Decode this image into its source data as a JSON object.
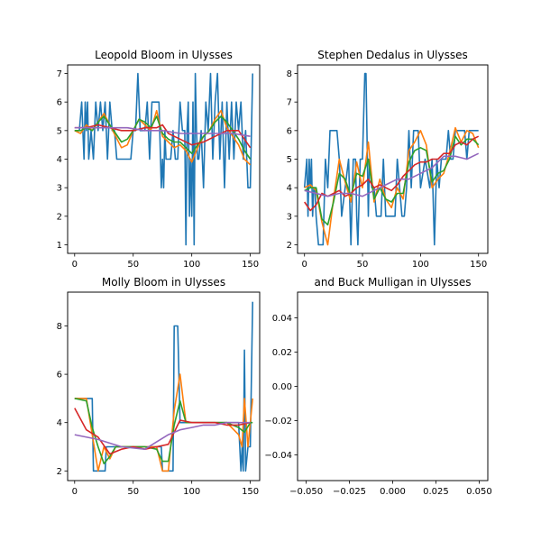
{
  "colors": [
    "#1f77b4",
    "#ff7f0e",
    "#2ca02c",
    "#d62728",
    "#9467bd"
  ],
  "chart_data": [
    {
      "type": "line",
      "title": "Leopold Bloom in Ulysses",
      "xlim": [
        -6,
        158
      ],
      "ylim": [
        0.7,
        7.3
      ],
      "xticks": [
        0,
        50,
        100,
        150
      ],
      "yticks": [
        1,
        2,
        3,
        4,
        5,
        6,
        7
      ],
      "series": [
        {
          "x": [
            0,
            2,
            4,
            6,
            8,
            9,
            10,
            11,
            12,
            14,
            16,
            18,
            20,
            22,
            24,
            26,
            28,
            30,
            32,
            34,
            36,
            38,
            40,
            42,
            44,
            46,
            48,
            50,
            52,
            54,
            56,
            58,
            60,
            62,
            64,
            66,
            68,
            70,
            72,
            74,
            75,
            76,
            77,
            78,
            80,
            82,
            84,
            86,
            88,
            90,
            92,
            94,
            95,
            96,
            97,
            98,
            99,
            100,
            101,
            102,
            103,
            104,
            105,
            106,
            108,
            110,
            112,
            114,
            116,
            118,
            120,
            122,
            124,
            126,
            128,
            130,
            132,
            134,
            136,
            138,
            140,
            142,
            144,
            146,
            148,
            150,
            152
          ],
          "y": [
            5,
            5,
            5,
            6,
            4,
            6,
            5,
            6,
            4,
            5,
            4,
            6,
            5,
            6,
            5,
            6,
            4,
            6,
            5,
            5,
            4,
            4,
            4,
            4,
            4,
            4,
            4,
            5,
            5,
            7,
            5,
            5,
            5,
            6,
            4,
            6,
            6,
            6,
            6,
            3,
            4,
            3,
            5,
            4,
            4,
            4,
            5,
            4,
            4,
            6,
            5,
            5,
            1,
            5,
            6,
            2,
            4,
            2,
            6,
            1,
            7,
            5,
            4,
            4,
            5,
            3,
            6,
            5,
            7,
            4,
            6,
            7,
            4,
            6,
            3,
            6,
            4,
            6,
            4,
            6,
            5,
            6,
            4,
            5,
            3,
            3,
            7
          ]
        },
        {
          "x": [
            0,
            5,
            10,
            15,
            20,
            25,
            30,
            35,
            40,
            45,
            50,
            55,
            60,
            65,
            70,
            75,
            80,
            85,
            90,
            95,
            100,
            105,
            110,
            115,
            120,
            125,
            130,
            135,
            140,
            145,
            150
          ],
          "y": [
            5.0,
            4.9,
            5.2,
            5.0,
            5.3,
            5.6,
            5.2,
            4.8,
            4.4,
            4.5,
            5.0,
            5.4,
            5.2,
            5.0,
            5.7,
            4.8,
            4.6,
            4.4,
            4.5,
            4.3,
            3.9,
            4.4,
            4.8,
            5.0,
            5.4,
            5.7,
            5.1,
            4.8,
            4.5,
            4.0,
            3.8
          ]
        },
        {
          "x": [
            0,
            5,
            10,
            15,
            20,
            25,
            30,
            35,
            40,
            45,
            50,
            55,
            60,
            65,
            70,
            75,
            80,
            85,
            90,
            95,
            100,
            105,
            110,
            115,
            120,
            125,
            130,
            135,
            140,
            145,
            150
          ],
          "y": [
            5.0,
            5.0,
            5.1,
            5.0,
            5.3,
            5.5,
            5.2,
            4.9,
            4.6,
            4.7,
            5.0,
            5.4,
            5.3,
            5.1,
            5.5,
            4.9,
            4.7,
            4.6,
            4.6,
            4.4,
            4.2,
            4.5,
            4.8,
            5.0,
            5.3,
            5.5,
            5.3,
            5.0,
            4.7,
            4.3,
            4.0
          ]
        },
        {
          "x": [
            0,
            10,
            20,
            30,
            40,
            50,
            60,
            70,
            75,
            80,
            90,
            100,
            110,
            120,
            130,
            140,
            150
          ],
          "y": [
            5.1,
            5.1,
            5.2,
            5.1,
            5.0,
            5.0,
            5.1,
            5.1,
            5.2,
            4.9,
            4.7,
            4.5,
            4.6,
            4.8,
            5.0,
            5.0,
            4.4
          ]
        },
        {
          "x": [
            0,
            15,
            30,
            45,
            60,
            75,
            90,
            105,
            120,
            135,
            150
          ],
          "y": [
            5.1,
            5.1,
            5.1,
            5.1,
            5.0,
            5.0,
            4.9,
            4.9,
            4.9,
            4.9,
            4.8
          ]
        }
      ]
    },
    {
      "type": "line",
      "title": "Stephen Dedalus in Ulysses",
      "xlim": [
        -6,
        158
      ],
      "ylim": [
        1.7,
        8.3
      ],
      "xticks": [
        0,
        50,
        100,
        150
      ],
      "yticks": [
        2,
        3,
        4,
        5,
        6,
        7,
        8
      ],
      "series": [
        {
          "x": [
            0,
            2,
            3,
            4,
            5,
            6,
            7,
            8,
            9,
            10,
            12,
            14,
            16,
            18,
            20,
            22,
            25,
            28,
            30,
            32,
            35,
            38,
            40,
            42,
            44,
            45,
            46,
            48,
            50,
            52,
            53,
            55,
            56,
            58,
            60,
            62,
            64,
            66,
            68,
            70,
            74,
            78,
            80,
            82,
            84,
            86,
            88,
            90,
            92,
            94,
            96,
            98,
            100,
            104,
            108,
            110,
            112,
            114,
            116,
            118,
            120,
            122,
            124,
            126,
            128,
            130,
            132,
            134,
            136,
            138,
            140,
            142,
            144,
            146,
            148,
            150
          ],
          "y": [
            4,
            5,
            3,
            5,
            4,
            5,
            3,
            4,
            4,
            3,
            2,
            2,
            2,
            5,
            4,
            6,
            6,
            6,
            5,
            3,
            4,
            5,
            2,
            5,
            5,
            3,
            2,
            5,
            5,
            8,
            8,
            3,
            5,
            4,
            4,
            3,
            3,
            3,
            5,
            3,
            3,
            3,
            5,
            4,
            3,
            3,
            4,
            6,
            4,
            6,
            6,
            6,
            4,
            5,
            4,
            5,
            2,
            5,
            4,
            5,
            5,
            5,
            6,
            5,
            5,
            6,
            6,
            6,
            6,
            6,
            5,
            6,
            6,
            6,
            6,
            6
          ]
        },
        {
          "x": [
            0,
            5,
            10,
            15,
            20,
            25,
            30,
            35,
            40,
            45,
            50,
            55,
            60,
            65,
            70,
            75,
            80,
            85,
            90,
            95,
            100,
            105,
            110,
            115,
            120,
            125,
            130,
            135,
            140,
            145,
            150
          ],
          "y": [
            4.0,
            4.1,
            3.9,
            2.8,
            2.0,
            3.6,
            5.0,
            4.2,
            3.5,
            4.9,
            4.0,
            5.6,
            3.5,
            4.3,
            3.6,
            3.3,
            4.0,
            3.6,
            5.3,
            5.6,
            6.0,
            5.5,
            4.0,
            4.3,
            4.5,
            5.2,
            6.1,
            5.6,
            6.0,
            5.9,
            5.4
          ]
        },
        {
          "x": [
            0,
            5,
            10,
            15,
            20,
            25,
            30,
            35,
            40,
            45,
            50,
            55,
            60,
            65,
            70,
            75,
            80,
            85,
            90,
            95,
            100,
            105,
            110,
            115,
            120,
            125,
            130,
            135,
            140,
            145,
            150
          ],
          "y": [
            3.9,
            4.0,
            4.0,
            2.9,
            2.7,
            3.5,
            4.5,
            4.3,
            3.7,
            4.5,
            4.4,
            5.0,
            3.6,
            4.0,
            3.6,
            3.5,
            3.8,
            3.8,
            4.9,
            5.3,
            5.4,
            5.3,
            4.2,
            4.5,
            4.6,
            5.0,
            5.8,
            5.5,
            5.7,
            5.7,
            5.5
          ]
        },
        {
          "x": [
            0,
            5,
            10,
            15,
            20,
            25,
            30,
            35,
            40,
            45,
            50,
            55,
            60,
            65,
            70,
            75,
            80,
            85,
            90,
            95,
            100,
            105,
            110,
            115,
            120,
            125,
            130,
            135,
            140,
            145,
            150
          ],
          "y": [
            3.5,
            3.2,
            3.4,
            3.8,
            3.7,
            3.8,
            3.9,
            3.7,
            3.8,
            4.0,
            4.1,
            4.3,
            4.0,
            4.1,
            4.0,
            3.9,
            4.1,
            4.4,
            4.6,
            4.8,
            4.9,
            4.9,
            5.0,
            5.0,
            5.2,
            5.2,
            5.5,
            5.6,
            5.5,
            5.7,
            5.8
          ]
        },
        {
          "x": [
            0,
            10,
            20,
            30,
            40,
            50,
            60,
            70,
            80,
            90,
            100,
            110,
            120,
            130,
            140,
            150
          ],
          "y": [
            3.9,
            3.8,
            3.7,
            3.8,
            3.8,
            3.7,
            3.9,
            4.1,
            4.3,
            4.3,
            4.5,
            4.7,
            5.1,
            5.1,
            5.0,
            5.2
          ]
        }
      ]
    },
    {
      "type": "line",
      "title": "Molly Bloom in Ulysses",
      "xlim": [
        -6,
        158
      ],
      "ylim": [
        1.6,
        9.4
      ],
      "xticks": [
        0,
        50,
        100,
        150
      ],
      "yticks": [
        2,
        4,
        6,
        8
      ],
      "series": [
        {
          "x": [
            0,
            10,
            14,
            15,
            16,
            26,
            27,
            28,
            30,
            40,
            50,
            60,
            70,
            72,
            74,
            75,
            76,
            84,
            85,
            86,
            88,
            90,
            91,
            92,
            100,
            110,
            120,
            130,
            138,
            140,
            142,
            143,
            144,
            145,
            146,
            148,
            150,
            152
          ],
          "y": [
            5,
            5,
            5,
            5,
            2,
            2,
            3,
            3,
            3,
            3,
            3,
            3,
            3,
            3,
            3,
            2,
            2,
            2,
            8,
            8,
            8,
            4,
            4,
            4,
            4,
            4,
            4,
            4,
            4,
            4,
            2,
            3,
            2,
            7,
            2,
            3,
            3,
            9
          ]
        },
        {
          "x": [
            0,
            10,
            15,
            20,
            25,
            30,
            35,
            40,
            50,
            60,
            70,
            75,
            80,
            85,
            90,
            95,
            100,
            110,
            120,
            130,
            140,
            143,
            145,
            148,
            150,
            152
          ],
          "y": [
            5.0,
            5.0,
            3.5,
            2.0,
            3.0,
            2.5,
            3.0,
            3.0,
            3.0,
            3.0,
            3.0,
            2.0,
            2.0,
            4.5,
            6.0,
            4.0,
            4.0,
            4.0,
            4.0,
            4.0,
            3.5,
            3.0,
            5.0,
            3.0,
            4.0,
            5.0
          ]
        },
        {
          "x": [
            0,
            10,
            15,
            20,
            25,
            30,
            35,
            40,
            50,
            60,
            70,
            75,
            80,
            85,
            90,
            95,
            100,
            110,
            120,
            130,
            140,
            145,
            150,
            152
          ],
          "y": [
            5.0,
            4.9,
            3.8,
            3.0,
            2.3,
            2.6,
            3.0,
            3.0,
            3.0,
            3.0,
            2.9,
            2.4,
            2.4,
            3.9,
            4.9,
            4.0,
            4.0,
            4.0,
            4.0,
            4.0,
            3.8,
            3.6,
            4.0,
            4.0
          ]
        },
        {
          "x": [
            0,
            10,
            20,
            30,
            40,
            50,
            60,
            70,
            80,
            90,
            100,
            110,
            120,
            130,
            140,
            150
          ],
          "y": [
            4.6,
            3.7,
            3.4,
            2.7,
            2.9,
            3.0,
            2.9,
            3.0,
            3.1,
            4.1,
            4.0,
            4.0,
            4.0,
            3.9,
            3.9,
            4.0
          ]
        },
        {
          "x": [
            0,
            20,
            40,
            60,
            70,
            80,
            90,
            100,
            110,
            120,
            130,
            140,
            150
          ],
          "y": [
            3.5,
            3.3,
            3.0,
            2.9,
            3.2,
            3.5,
            3.7,
            3.8,
            3.9,
            3.9,
            4.0,
            4.0,
            4.0
          ]
        }
      ]
    },
    {
      "type": "line",
      "title": "and Buck Mulligan in Ulysses",
      "xlim": [
        -0.055,
        0.055
      ],
      "ylim": [
        -0.055,
        0.055
      ],
      "xticks": [
        -0.05,
        -0.025,
        0.0,
        0.025,
        0.05
      ],
      "yticks": [
        -0.04,
        -0.02,
        0.0,
        0.02,
        0.04
      ],
      "xtick_labels": [
        "−0.050",
        "−0.025",
        "0.000",
        "0.025",
        "0.050"
      ],
      "ytick_labels": [
        "−0.04",
        "−0.02",
        "0.00",
        "0.02",
        "0.04"
      ],
      "series": []
    }
  ]
}
